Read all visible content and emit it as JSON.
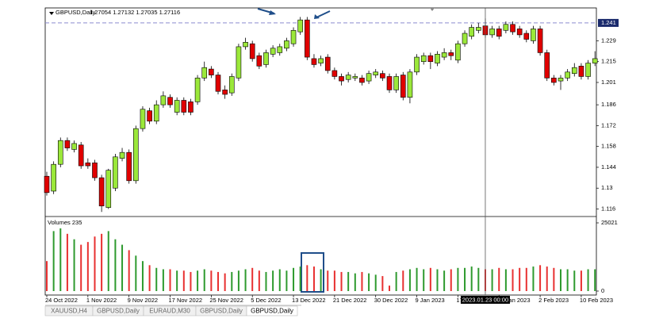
{
  "chart_data": [
    {
      "type": "candlestick",
      "title": "GBPUSD,Daily",
      "subtitle": "1.27054 1.27132 1.27035 1.27116",
      "categories": [
        "24 Oct 2022",
        null,
        null,
        null,
        null,
        null,
        "1 Nov 2022",
        null,
        null,
        null,
        null,
        null,
        "9 Nov 2022",
        null,
        null,
        null,
        null,
        null,
        "17 Nov 2022",
        null,
        null,
        null,
        null,
        null,
        "25 Nov 2022",
        null,
        null,
        null,
        null,
        null,
        "5 Dec 2022",
        null,
        null,
        null,
        null,
        null,
        "13 Dec 2022",
        null,
        null,
        null,
        null,
        null,
        "21 Dec 2022",
        null,
        null,
        null,
        null,
        null,
        "30 Dec 2022",
        null,
        null,
        null,
        null,
        null,
        "9 Jan 2023",
        null,
        null,
        null,
        null,
        null,
        "17 Jan 2023",
        null,
        null,
        null,
        null,
        null,
        "25 Jan 2023",
        null,
        null,
        null,
        null,
        null,
        "2 Feb 2023",
        null,
        null,
        null,
        null,
        null,
        "10 Feb 2023",
        null,
        null
      ],
      "open": [
        1.138,
        1.128,
        1.146,
        1.162,
        1.156,
        1.159,
        1.147,
        1.147,
        1.137,
        1.117,
        1.13,
        1.15,
        1.154,
        1.135,
        1.17,
        1.182,
        1.175,
        1.186,
        1.191,
        1.181,
        1.189,
        1.188,
        1.188,
        1.204,
        1.21,
        1.206,
        1.196,
        1.194,
        1.204,
        1.225,
        1.227,
        1.219,
        1.213,
        1.22,
        1.221,
        1.224,
        1.227,
        1.235,
        1.243,
        1.217,
        1.214,
        1.218,
        1.209,
        1.205,
        1.203,
        1.204,
        1.204,
        1.202,
        1.206,
        1.207,
        1.205,
        1.196,
        1.206,
        1.191,
        1.208,
        1.215,
        1.219,
        1.214,
        1.218,
        1.221,
        1.216,
        1.227,
        1.232,
        1.236,
        1.239,
        1.233,
        1.237,
        1.236,
        1.24,
        1.237,
        1.234,
        1.229,
        1.237,
        1.221,
        1.204,
        1.202,
        1.204,
        1.207,
        1.212,
        1.205,
        1.214
      ],
      "high": [
        1.141,
        1.148,
        1.164,
        1.164,
        1.162,
        1.161,
        1.15,
        1.149,
        1.139,
        1.143,
        1.153,
        1.157,
        1.156,
        1.172,
        1.185,
        1.184,
        1.189,
        1.195,
        1.193,
        1.191,
        1.191,
        1.19,
        1.206,
        1.215,
        1.212,
        1.208,
        1.199,
        1.207,
        1.227,
        1.231,
        1.229,
        1.221,
        1.223,
        1.226,
        1.227,
        1.231,
        1.238,
        1.245,
        1.245,
        1.22,
        1.219,
        1.22,
        1.211,
        1.207,
        1.208,
        1.207,
        1.206,
        1.209,
        1.21,
        1.209,
        1.207,
        1.207,
        1.208,
        1.21,
        1.22,
        1.221,
        1.221,
        1.222,
        1.224,
        1.223,
        1.229,
        1.236,
        1.24,
        1.241,
        1.244,
        1.239,
        1.239,
        1.242,
        1.242,
        1.239,
        1.236,
        1.239,
        1.239,
        1.223,
        1.206,
        1.206,
        1.21,
        1.214,
        1.214,
        1.216,
        1.222
      ],
      "low": [
        1.125,
        1.126,
        1.144,
        1.155,
        1.154,
        1.143,
        1.143,
        1.135,
        1.114,
        1.116,
        1.128,
        1.148,
        1.133,
        1.133,
        1.168,
        1.173,
        1.173,
        1.184,
        1.184,
        1.179,
        1.179,
        1.179,
        1.186,
        1.202,
        1.204,
        1.193,
        1.19,
        1.192,
        1.202,
        1.223,
        1.215,
        1.21,
        1.211,
        1.218,
        1.219,
        1.222,
        1.225,
        1.233,
        1.216,
        1.211,
        1.212,
        1.207,
        1.203,
        1.199,
        1.201,
        1.202,
        1.199,
        1.2,
        1.204,
        1.202,
        1.194,
        1.194,
        1.189,
        1.187,
        1.206,
        1.213,
        1.21,
        1.212,
        1.216,
        1.216,
        1.214,
        1.225,
        1.23,
        1.234,
        1.231,
        1.231,
        1.23,
        1.234,
        1.233,
        1.231,
        1.228,
        1.227,
        1.219,
        1.202,
        1.199,
        1.196,
        1.202,
        1.205,
        1.203,
        1.203,
        1.212
      ],
      "close": [
        1.127,
        1.146,
        1.162,
        1.157,
        1.16,
        1.145,
        1.145,
        1.137,
        1.118,
        1.142,
        1.151,
        1.154,
        1.135,
        1.17,
        1.183,
        1.175,
        1.186,
        1.192,
        1.186,
        1.189,
        1.181,
        1.181,
        1.204,
        1.211,
        1.206,
        1.195,
        1.193,
        1.205,
        1.225,
        1.228,
        1.217,
        1.212,
        1.221,
        1.224,
        1.225,
        1.229,
        1.236,
        1.243,
        1.218,
        1.213,
        1.217,
        1.209,
        1.205,
        1.202,
        1.206,
        1.205,
        1.201,
        1.207,
        1.208,
        1.204,
        1.196,
        1.205,
        1.191,
        1.208,
        1.218,
        1.219,
        1.215,
        1.22,
        1.221,
        1.219,
        1.227,
        1.234,
        1.238,
        1.238,
        1.233,
        1.237,
        1.232,
        1.24,
        1.235,
        1.233,
        1.23,
        1.237,
        1.221,
        1.204,
        1.201,
        1.204,
        1.208,
        1.211,
        1.205,
        1.214,
        1.217
      ],
      "up_color": "#9be83a",
      "down_color": "#e00000",
      "ylim": [
        1.112,
        1.25
      ],
      "yticks": [
        1.116,
        1.13,
        1.144,
        1.158,
        1.172,
        1.186,
        1.201,
        1.215,
        1.229
      ],
      "hline": 1.241
    },
    {
      "type": "bar",
      "title": "Volumes 235",
      "values": [
        11000,
        22000,
        23000,
        21000,
        19000,
        17000,
        18000,
        20000,
        21000,
        22000,
        19000,
        17000,
        15000,
        13000,
        11000,
        9500,
        8500,
        8000,
        8000,
        7500,
        7500,
        7000,
        7500,
        8000,
        7500,
        7000,
        6500,
        7000,
        7500,
        8000,
        8500,
        7500,
        7000,
        7500,
        8000,
        7500,
        8500,
        9000,
        9500,
        9000,
        8000,
        7500,
        7500,
        7000,
        7000,
        6500,
        7000,
        6500,
        6000,
        5500,
        2000,
        7000,
        7500,
        8000,
        8500,
        8000,
        8500,
        8000,
        7500,
        8000,
        8500,
        8500,
        9000,
        8500,
        8000,
        8000,
        8500,
        8000,
        8000,
        8500,
        8500,
        9000,
        9500,
        9000,
        8500,
        8000,
        8000,
        7500,
        7500,
        8000,
        8000
      ],
      "up_color": "#2e9a2e",
      "down_color": "#e83030",
      "ylim": [
        0,
        25021
      ],
      "yticks": [
        0,
        25021
      ]
    }
  ],
  "cursor_label": "2023.01.23 00:00",
  "tabs": [
    "XAUUSD,H4",
    "GBPUSD,Daily",
    "EURAUD,M30",
    "GBPUSD,Daily",
    "GBPUSD,Daily"
  ]
}
